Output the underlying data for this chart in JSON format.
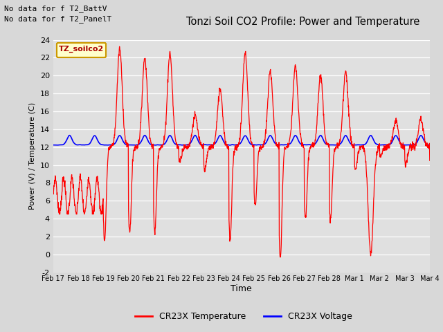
{
  "title": "Tonzi Soil CO2 Profile: Power and Temperature",
  "ylabel": "Power (V) / Temperature (C)",
  "xlabel": "Time",
  "ylim": [
    -2,
    24
  ],
  "yticks": [
    -2,
    0,
    2,
    4,
    6,
    8,
    10,
    12,
    14,
    16,
    18,
    20,
    22,
    24
  ],
  "xtick_labels": [
    "Feb 17",
    "Feb 18",
    "Feb 19",
    "Feb 20",
    "Feb 21",
    "Feb 22",
    "Feb 23",
    "Feb 24",
    "Feb 25",
    "Feb 26",
    "Feb 27",
    "Feb 28",
    "Mar 1",
    "Mar 2",
    "Mar 3",
    "Mar 4"
  ],
  "header_text1": "No data for f T2_BattV",
  "header_text2": "No data for f T2_PanelT",
  "legend_box_label": "TZ_soilco2",
  "legend_box_bg": "#ffffcc",
  "legend_box_border": "#cc9900",
  "legend_temp_label": "CR23X Temperature",
  "legend_volt_label": "CR23X Voltage",
  "temp_color": "#ff0000",
  "volt_color": "#0000ff",
  "fig_bg": "#d8d8d8",
  "plot_bg": "#e0e0e0",
  "grid_color": "#ffffff",
  "xlim_days": [
    0,
    15
  ]
}
